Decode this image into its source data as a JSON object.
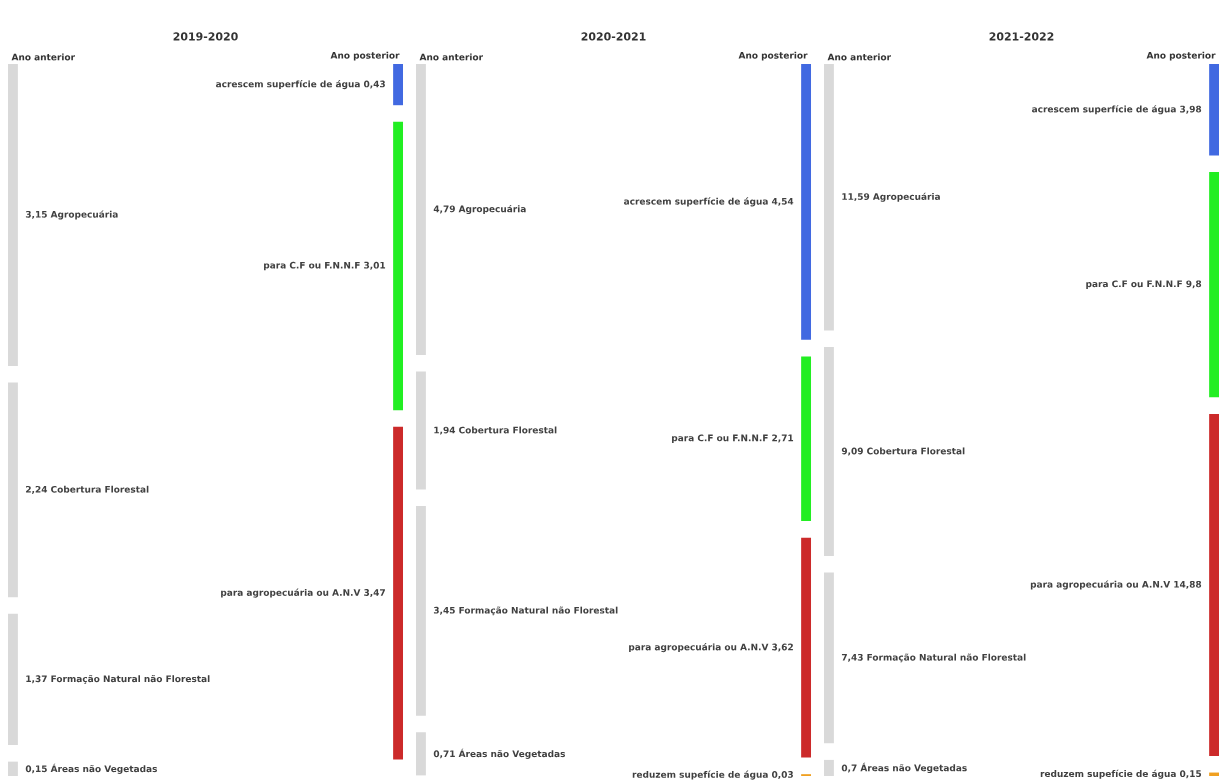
{
  "chart_data": [
    {
      "type": "other",
      "title": "2019-2020",
      "categories": [
        "Agropecuária",
        "Cobertura Florestal",
        "Formação Natural não Florestal",
        "Áreas não Vegetadas",
        "acrescem superfície de água",
        "para C.F ou F.N.N.F",
        "para agropecuária ou A.N.V"
      ],
      "series": [
        {
          "name": "Ano anterior",
          "values": [
            3.15,
            2.24,
            1.37,
            0.15,
            null,
            null,
            null
          ],
          "value_labels": [
            "3,15",
            "2,24",
            "1,37",
            "0,15",
            null,
            null,
            null
          ],
          "colors": [
            "#d9d9d9",
            "#d9d9d9",
            "#d9d9d9",
            "#d9d9d9",
            null,
            null,
            null
          ]
        },
        {
          "name": "Ano posterior",
          "values": [
            null,
            null,
            null,
            null,
            0.43,
            3.01,
            3.47
          ],
          "value_labels": [
            null,
            null,
            null,
            null,
            "0,43",
            "3,01",
            "3,47"
          ],
          "colors": [
            null,
            null,
            null,
            null,
            "#4169e1",
            "#22ee22",
            "#cc2a2a"
          ]
        }
      ]
    },
    {
      "type": "other",
      "title": "2020-2021",
      "categories": [
        "Agropecuária",
        "Cobertura Florestal",
        "Formação Natural não Florestal",
        "Áreas não Vegetadas",
        "acrescem superfície de água",
        "para C.F ou F.N.N.F",
        "para agropecuária ou A.N.V",
        "reduzem supefície de água"
      ],
      "series": [
        {
          "name": "Ano anterior",
          "values": [
            4.79,
            1.94,
            3.45,
            0.71,
            null,
            null,
            null,
            null
          ],
          "value_labels": [
            "4,79",
            "1,94",
            "3,45",
            "0,71",
            null,
            null,
            null,
            null
          ],
          "colors": [
            "#d9d9d9",
            "#d9d9d9",
            "#d9d9d9",
            "#d9d9d9",
            null,
            null,
            null,
            null
          ]
        },
        {
          "name": "Ano posterior",
          "values": [
            null,
            null,
            null,
            null,
            4.54,
            2.71,
            3.62,
            0.03
          ],
          "value_labels": [
            null,
            null,
            null,
            null,
            "4,54",
            "2,71",
            "3,62",
            "0,03"
          ],
          "colors": [
            null,
            null,
            null,
            null,
            "#4169e1",
            "#22ee22",
            "#cc2a2a",
            "#f0a020"
          ]
        }
      ]
    },
    {
      "type": "other",
      "title": "2021-2022",
      "categories": [
        "Agropecuária",
        "Cobertura Florestal",
        "Formação Natural não Florestal",
        "Áreas não Vegetadas",
        "acrescem superfície de água",
        "para C.F ou F.N.N.F",
        "para agropecuária ou A.N.V",
        "reduzem supefície de água"
      ],
      "series": [
        {
          "name": "Ano anterior",
          "values": [
            11.59,
            9.09,
            7.43,
            0.7,
            null,
            null,
            null,
            null
          ],
          "value_labels": [
            "11,59",
            "9,09",
            "7,43",
            "0,7",
            null,
            null,
            null,
            null
          ],
          "colors": [
            "#d9d9d9",
            "#d9d9d9",
            "#d9d9d9",
            "#d9d9d9",
            null,
            null,
            null,
            null
          ]
        },
        {
          "name": "Ano posterior",
          "values": [
            null,
            null,
            null,
            null,
            3.98,
            9.8,
            14.88,
            0.15
          ],
          "value_labels": [
            null,
            null,
            null,
            null,
            "3,98",
            "9,8",
            "14,88",
            "0,15"
          ],
          "colors": [
            null,
            null,
            null,
            null,
            "#4169e1",
            "#22ee22",
            "#cc2a2a",
            "#f0a020"
          ]
        }
      ]
    }
  ]
}
